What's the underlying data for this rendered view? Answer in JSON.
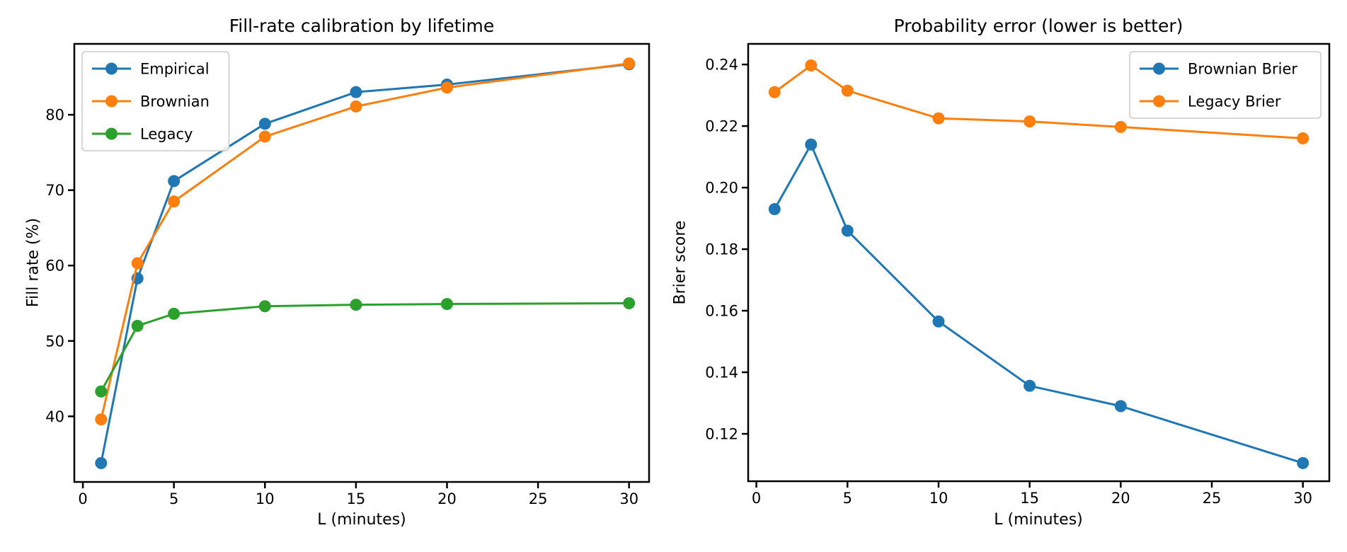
{
  "figure_background": "#ffffff",
  "text_color": "#000000",
  "spine_color": "#000000",
  "legend_border_color": "#cccccc",
  "chart_data": [
    {
      "type": "line",
      "title": "Fill-rate calibration by lifetime",
      "xlabel": "L (minutes)",
      "ylabel": "Fill rate (%)",
      "x": [
        1,
        3,
        5,
        10,
        15,
        20,
        30
      ],
      "series": [
        {
          "name": "Empirical",
          "color": "#1f77b4",
          "values": [
            33.8,
            58.3,
            71.2,
            78.8,
            83.0,
            84.0,
            86.7
          ]
        },
        {
          "name": "Brownian",
          "color": "#ff7f0e",
          "values": [
            39.6,
            60.3,
            68.5,
            77.1,
            81.1,
            83.6,
            86.8
          ]
        },
        {
          "name": "Legacy",
          "color": "#2ca02c",
          "values": [
            43.3,
            52.0,
            53.6,
            54.6,
            54.8,
            54.9,
            55.0
          ]
        }
      ],
      "x_ticks": [
        0,
        5,
        10,
        15,
        20,
        25,
        30
      ],
      "x_tick_labels": [
        "0",
        "5",
        "10",
        "15",
        "20",
        "25",
        "30"
      ],
      "y_ticks": [
        40,
        50,
        60,
        70,
        80
      ],
      "y_tick_labels": [
        "40",
        "50",
        "60",
        "70",
        "80"
      ],
      "xlim": [
        -0.47,
        31.1
      ],
      "ylim": [
        31.3,
        89.4
      ],
      "grid": false,
      "legend": {
        "position": "upper-left",
        "entries": [
          "Empirical",
          "Brownian",
          "Legacy"
        ]
      }
    },
    {
      "type": "line",
      "title": "Probability error (lower is better)",
      "xlabel": "L (minutes)",
      "ylabel": "Brier score",
      "x": [
        1,
        3,
        5,
        10,
        15,
        20,
        30
      ],
      "series": [
        {
          "name": "Brownian Brier",
          "color": "#1f77b4",
          "values": [
            0.193,
            0.214,
            0.186,
            0.1565,
            0.1356,
            0.129,
            0.1105
          ]
        },
        {
          "name": "Legacy Brier",
          "color": "#ff7f0e",
          "values": [
            0.231,
            0.2397,
            0.2315,
            0.2225,
            0.2215,
            0.2197,
            0.216
          ]
        }
      ],
      "x_ticks": [
        0,
        5,
        10,
        15,
        20,
        25,
        30
      ],
      "x_tick_labels": [
        "0",
        "5",
        "10",
        "15",
        "20",
        "25",
        "30"
      ],
      "y_ticks": [
        0.12,
        0.14,
        0.16,
        0.18,
        0.2,
        0.22,
        0.24
      ],
      "y_tick_labels": [
        "0.12",
        "0.14",
        "0.16",
        "0.18",
        "0.20",
        "0.22",
        "0.24"
      ],
      "xlim": [
        -0.45,
        31.45
      ],
      "ylim": [
        0.1046,
        0.2467
      ],
      "grid": false,
      "legend": {
        "position": "upper-right",
        "entries": [
          "Brownian Brier",
          "Legacy Brier"
        ]
      }
    }
  ]
}
